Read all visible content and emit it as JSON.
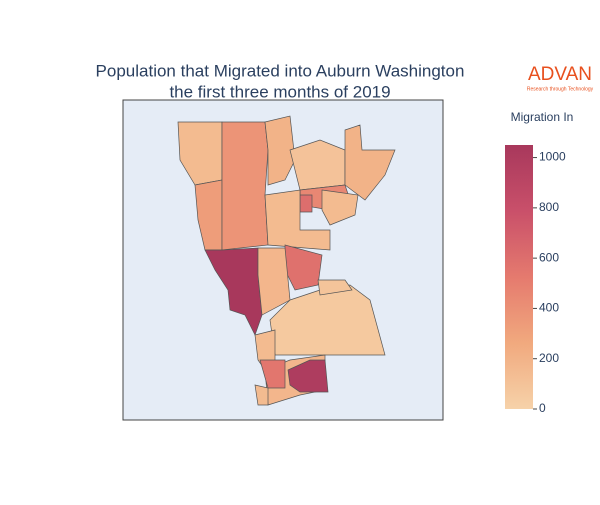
{
  "chart_data": {
    "type": "choropleth",
    "title": [
      "Population that Migrated into Auburn Washington",
      "the first three months of 2019"
    ],
    "logo": {
      "text": "ADVAN",
      "tagline": "Research through Technology",
      "color": "#e8501e"
    },
    "values": [
      150,
      330,
      380,
      200,
      100,
      200,
      450,
      600,
      150,
      1050,
      580,
      180,
      60,
      90,
      150,
      180,
      550,
      1000,
      150,
      150
    ],
    "colorscale": [
      "#f6d2a9",
      "#f1a97e",
      "#e57a6e",
      "#c9506a",
      "#a8385c"
    ],
    "colorbar": {
      "title": "Migration In",
      "lim": [
        0,
        1050
      ],
      "ticks": [
        0,
        200,
        400,
        600,
        800,
        1000
      ]
    },
    "background": "#e5ecf6"
  }
}
